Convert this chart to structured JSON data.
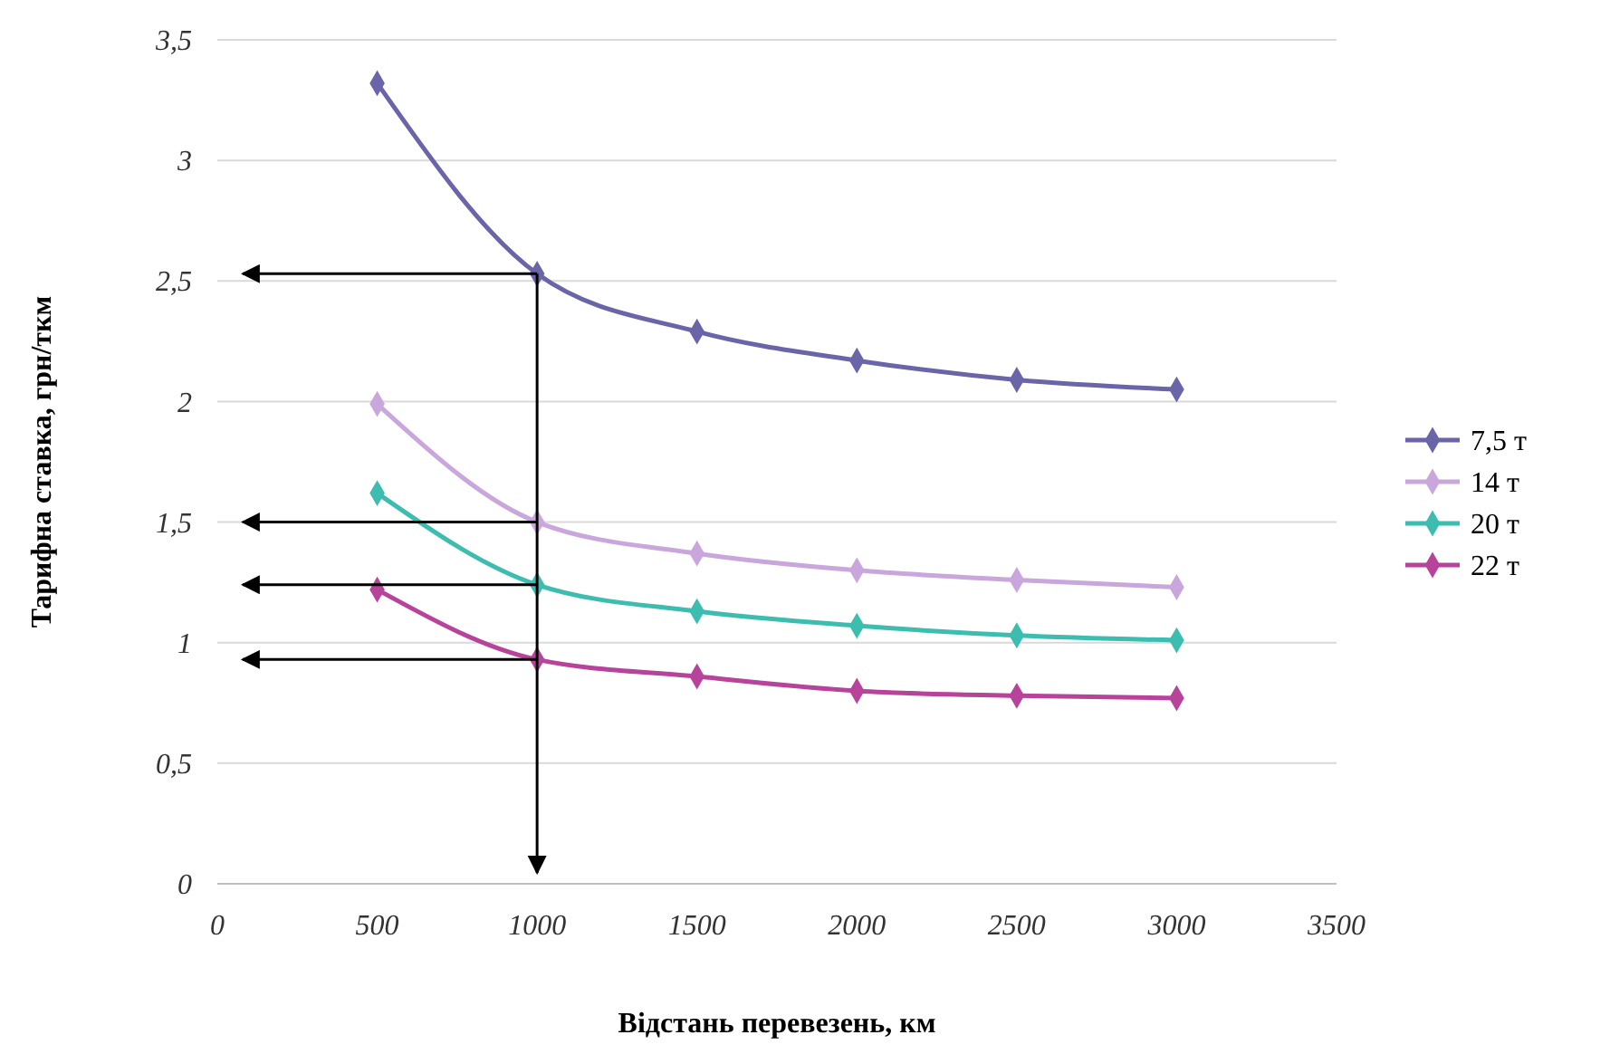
{
  "chart_data": {
    "type": "line",
    "xlabel": "Відстань перевезень, км",
    "ylabel": "Тарифна ставка, грн/ткм",
    "x": [
      500,
      1000,
      1500,
      2000,
      2500,
      3000
    ],
    "series": [
      {
        "name": "7,5 т",
        "color": "#6a65a8",
        "values": [
          3.32,
          2.53,
          2.29,
          2.17,
          2.09,
          2.05
        ]
      },
      {
        "name": "14 т",
        "color": "#c9a6dc",
        "values": [
          1.99,
          1.5,
          1.37,
          1.3,
          1.26,
          1.23
        ]
      },
      {
        "name": "20 т",
        "color": "#3dbdb0",
        "values": [
          1.62,
          1.24,
          1.13,
          1.07,
          1.03,
          1.01
        ]
      },
      {
        "name": "22 т",
        "color": "#b7449a",
        "values": [
          1.22,
          0.93,
          0.86,
          0.8,
          0.78,
          0.77
        ]
      }
    ],
    "xlim": [
      0,
      3500
    ],
    "xticks": [
      0,
      500,
      1000,
      1500,
      2000,
      2500,
      3000,
      3500
    ],
    "ylim": [
      0,
      3.5
    ],
    "yticks": [
      0,
      {
        "value": 0.5,
        "label": "0,5"
      },
      1,
      {
        "value": 1.5,
        "label": "1,5"
      },
      2,
      {
        "value": 2.5,
        "label": "2,5"
      },
      3,
      {
        "value": 3.5,
        "label": "3,5"
      }
    ],
    "grid": "y",
    "legend": "right",
    "marker": "diamond",
    "line_style": "solid"
  }
}
